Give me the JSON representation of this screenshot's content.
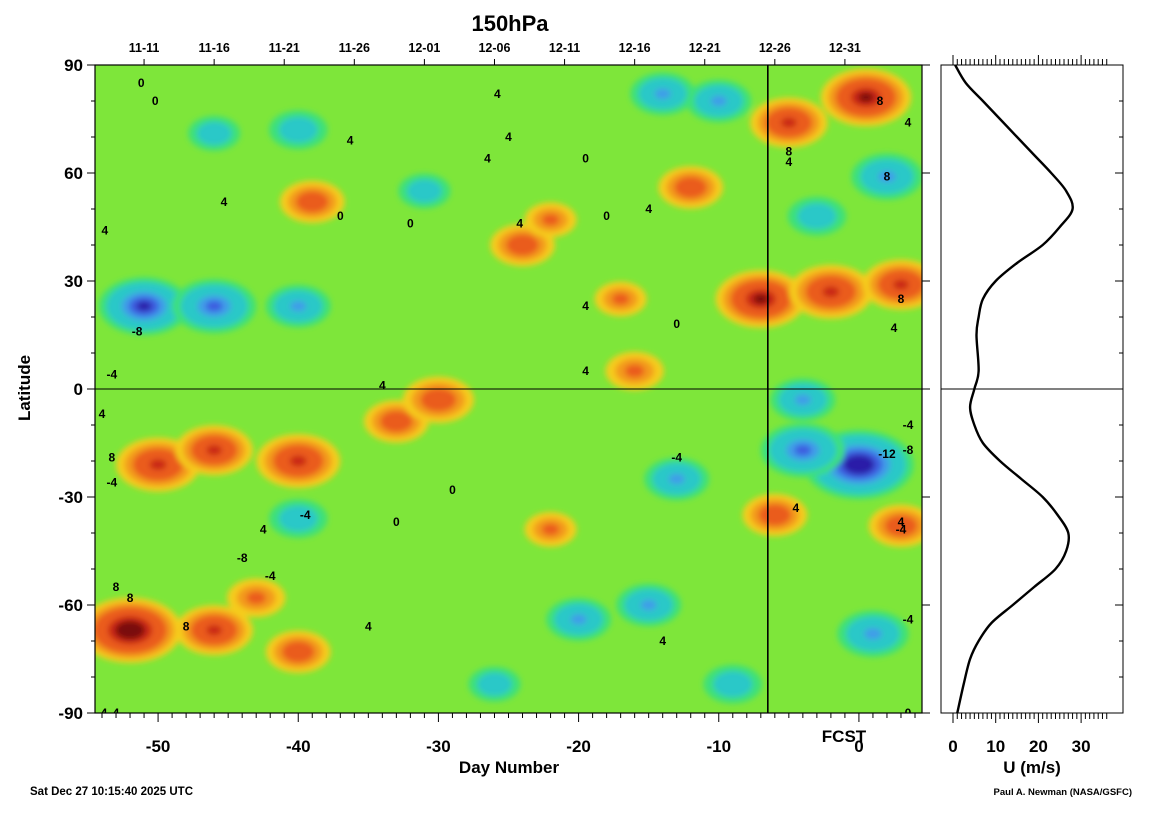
{
  "chart_data": [
    {
      "type": "heatmap",
      "title": "150hPa",
      "xlabel": "Day Number",
      "ylabel": "Latitude",
      "xlim": [
        -54.5,
        4.5
      ],
      "ylim": [
        -90,
        90
      ],
      "xticks": [
        -50,
        -40,
        -30,
        -20,
        -10,
        0
      ],
      "yticks": [
        -90,
        -60,
        -30,
        0,
        30,
        60,
        90
      ],
      "date_ticks": [
        {
          "x": -51,
          "label": "11-11"
        },
        {
          "x": -46,
          "label": "11-16"
        },
        {
          "x": -41,
          "label": "11-21"
        },
        {
          "x": -36,
          "label": "11-26"
        },
        {
          "x": -31,
          "label": "12-01"
        },
        {
          "x": -26,
          "label": "12-06"
        },
        {
          "x": -21,
          "label": "12-11"
        },
        {
          "x": -16,
          "label": "12-16"
        },
        {
          "x": -11,
          "label": "12-21"
        },
        {
          "x": -6,
          "label": "12-26"
        },
        {
          "x": -1,
          "label": "12-31"
        }
      ],
      "forecast_start_day": -6.5,
      "forecast_label": "FCST",
      "colormap": [
        "#2a1fa8",
        "#3e5de0",
        "#3f9ee8",
        "#29c8c8",
        "#3ee07a",
        "#86ef2a",
        "#c9ed2a",
        "#f5cc1f",
        "#f39a1b",
        "#ea5c1c",
        "#c92818",
        "#7a0d0b"
      ],
      "value_range": [
        -14,
        14
      ],
      "contour_interval": 2,
      "features": [
        {
          "kind": "min",
          "x": -51,
          "y": 23,
          "value": -11
        },
        {
          "kind": "min",
          "x": -46,
          "y": 23,
          "value": -10
        },
        {
          "kind": "min",
          "x": -40,
          "y": 23,
          "value": -7
        },
        {
          "kind": "max",
          "x": -50,
          "y": -21,
          "value": 10
        },
        {
          "kind": "max",
          "x": -46,
          "y": -17,
          "value": 9
        },
        {
          "kind": "max",
          "x": -40,
          "y": -20,
          "value": 10
        },
        {
          "kind": "max",
          "x": -33,
          "y": -9,
          "value": 7
        },
        {
          "kind": "max",
          "x": -30,
          "y": -3,
          "value": 8
        },
        {
          "kind": "max",
          "x": -52,
          "y": -67,
          "value": 13
        },
        {
          "kind": "max",
          "x": -46,
          "y": -67,
          "value": 9
        },
        {
          "kind": "max",
          "x": -40,
          "y": -73,
          "value": 7
        },
        {
          "kind": "max",
          "x": -43,
          "y": -58,
          "value": 6
        },
        {
          "kind": "max",
          "x": -39,
          "y": 52,
          "value": 7
        },
        {
          "kind": "max",
          "x": -24,
          "y": 40,
          "value": 7
        },
        {
          "kind": "max",
          "x": -22,
          "y": 47,
          "value": 5
        },
        {
          "kind": "max",
          "x": -12,
          "y": 56,
          "value": 7
        },
        {
          "kind": "max",
          "x": -16,
          "y": 5,
          "value": 6
        },
        {
          "kind": "max",
          "x": -17,
          "y": 25,
          "value": 5
        },
        {
          "kind": "max",
          "x": -5,
          "y": 74,
          "value": 9
        },
        {
          "kind": "max",
          "x": 0.5,
          "y": 81,
          "value": 11
        },
        {
          "kind": "max",
          "x": -7,
          "y": 25,
          "value": 11
        },
        {
          "kind": "max",
          "x": -2,
          "y": 27,
          "value": 10
        },
        {
          "kind": "max",
          "x": 3,
          "y": 29,
          "value": 9
        },
        {
          "kind": "max",
          "x": -6,
          "y": -35,
          "value": 7
        },
        {
          "kind": "max",
          "x": 3,
          "y": -38,
          "value": 7
        },
        {
          "kind": "max",
          "x": -22,
          "y": -39,
          "value": 5
        },
        {
          "kind": "min",
          "x": 0,
          "y": -21,
          "value": -14
        },
        {
          "kind": "min",
          "x": -4,
          "y": -17,
          "value": -10
        },
        {
          "kind": "min",
          "x": -4,
          "y": -3,
          "value": -7
        },
        {
          "kind": "min",
          "x": -14,
          "y": 82,
          "value": -7
        },
        {
          "kind": "min",
          "x": -10,
          "y": 80,
          "value": -7
        },
        {
          "kind": "min",
          "x": 2,
          "y": 59,
          "value": -8
        },
        {
          "kind": "min",
          "x": -3,
          "y": 48,
          "value": -6
        },
        {
          "kind": "min",
          "x": -20,
          "y": -64,
          "value": -7
        },
        {
          "kind": "min",
          "x": -15,
          "y": -60,
          "value": -7
        },
        {
          "kind": "min",
          "x": 1,
          "y": -68,
          "value": -8
        },
        {
          "kind": "min",
          "x": -13,
          "y": -25,
          "value": -7
        },
        {
          "kind": "min",
          "x": -40,
          "y": -36,
          "value": -6
        },
        {
          "kind": "min",
          "x": -46,
          "y": 71,
          "value": -5
        },
        {
          "kind": "min",
          "x": -40,
          "y": 72,
          "value": -6
        },
        {
          "kind": "min",
          "x": -26,
          "y": -82,
          "value": -5
        },
        {
          "kind": "min",
          "x": -9,
          "y": -82,
          "value": -6
        },
        {
          "kind": "min",
          "x": -31,
          "y": 55,
          "value": -5
        }
      ],
      "contour_labels": [
        {
          "x": -51.2,
          "y": 85,
          "text": "0"
        },
        {
          "x": -50.2,
          "y": 80,
          "text": "0"
        },
        {
          "x": -45.3,
          "y": 52,
          "text": "4"
        },
        {
          "x": -36.3,
          "y": 69,
          "text": "4"
        },
        {
          "x": -53.8,
          "y": 44,
          "text": "4"
        },
        {
          "x": -51.5,
          "y": 16,
          "text": "-8"
        },
        {
          "x": -53.3,
          "y": 4,
          "text": "-4"
        },
        {
          "x": -53.3,
          "y": -26,
          "text": "-4"
        },
        {
          "x": -54.0,
          "y": -7,
          "text": "4"
        },
        {
          "x": -53.3,
          "y": -19,
          "text": "8"
        },
        {
          "x": -34.0,
          "y": 1,
          "text": "4"
        },
        {
          "x": -25.8,
          "y": 82,
          "text": "4"
        },
        {
          "x": -26.5,
          "y": 64,
          "text": "4"
        },
        {
          "x": -25.0,
          "y": 70,
          "text": "4"
        },
        {
          "x": -24.2,
          "y": 46,
          "text": "4"
        },
        {
          "x": -32.0,
          "y": 46,
          "text": "0"
        },
        {
          "x": -18.0,
          "y": 48,
          "text": "0"
        },
        {
          "x": -19.5,
          "y": 64,
          "text": "0"
        },
        {
          "x": -15.0,
          "y": 50,
          "text": "4"
        },
        {
          "x": -19.5,
          "y": 23,
          "text": "4"
        },
        {
          "x": -19.5,
          "y": 5,
          "text": "4"
        },
        {
          "x": -13.0,
          "y": 18,
          "text": "0"
        },
        {
          "x": -13.0,
          "y": -19,
          "text": "-4"
        },
        {
          "x": -44.0,
          "y": -47,
          "text": "-8"
        },
        {
          "x": -42.0,
          "y": -52,
          "text": "-4"
        },
        {
          "x": -39.5,
          "y": -35,
          "text": "-4"
        },
        {
          "x": -42.5,
          "y": -39,
          "text": "4"
        },
        {
          "x": -53.0,
          "y": -55,
          "text": "8"
        },
        {
          "x": -52.0,
          "y": -58,
          "text": "8"
        },
        {
          "x": -48.0,
          "y": -66,
          "text": "8"
        },
        {
          "x": -35.0,
          "y": -66,
          "text": "4"
        },
        {
          "x": -29.0,
          "y": -28,
          "text": "0"
        },
        {
          "x": -33.0,
          "y": -37,
          "text": "0"
        },
        {
          "x": -37.0,
          "y": 48,
          "text": "0"
        },
        {
          "x": -14.0,
          "y": -70,
          "text": "4"
        },
        {
          "x": -4.5,
          "y": -33,
          "text": "4"
        },
        {
          "x": -5.0,
          "y": 66,
          "text": "8"
        },
        {
          "x": -5.0,
          "y": 63,
          "text": "4"
        },
        {
          "x": 1.5,
          "y": 80,
          "text": "8"
        },
        {
          "x": 3.5,
          "y": 74,
          "text": "4"
        },
        {
          "x": 2.0,
          "y": 59,
          "text": "8"
        },
        {
          "x": 3.0,
          "y": 25,
          "text": "8"
        },
        {
          "x": 2.5,
          "y": 17,
          "text": "4"
        },
        {
          "x": 3.5,
          "y": -10,
          "text": "-4"
        },
        {
          "x": 3.5,
          "y": -17,
          "text": "-8"
        },
        {
          "x": 3.0,
          "y": -37,
          "text": "4"
        },
        {
          "x": 3.0,
          "y": -39,
          "text": "-4"
        },
        {
          "x": 3.5,
          "y": -64,
          "text": "-4"
        },
        {
          "x": 3.5,
          "y": -90,
          "text": "0"
        },
        {
          "x": -53.0,
          "y": -90,
          "text": "4"
        },
        {
          "x": -54.0,
          "y": -90,
          "text": "-4"
        }
      ],
      "labels": [
        {
          "x": 2.0,
          "y": -18,
          "text": "-12"
        }
      ]
    },
    {
      "type": "line",
      "title": "",
      "xlabel": "U (m/s)",
      "ylabel": "",
      "xlim": [
        0,
        37
      ],
      "ylim": [
        -90,
        90
      ],
      "xticks": [
        0,
        10,
        20,
        30
      ],
      "x": [
        0.5,
        3,
        7,
        11,
        15,
        19,
        23,
        26.5,
        28,
        25,
        21,
        15,
        10,
        7,
        6,
        5.5,
        6,
        5,
        4,
        5,
        7,
        11,
        16,
        21,
        24.5,
        27,
        26.5,
        24,
        19,
        14,
        9,
        6,
        4,
        2.5,
        1
      ],
      "y": [
        90,
        85,
        80,
        75,
        70,
        65,
        60,
        55,
        50,
        45,
        40,
        35,
        30,
        25,
        20,
        15,
        5,
        0,
        -5,
        -10,
        -15,
        -20,
        -25,
        -30,
        -35,
        -40,
        -45,
        -50,
        -55,
        -60,
        -65,
        -70,
        -75,
        -82,
        -90
      ]
    }
  ],
  "footer": {
    "timestamp": "Sat Dec 27 10:15:40 2025 UTC",
    "credit": "Paul A. Newman (NASA/GSFC)"
  }
}
